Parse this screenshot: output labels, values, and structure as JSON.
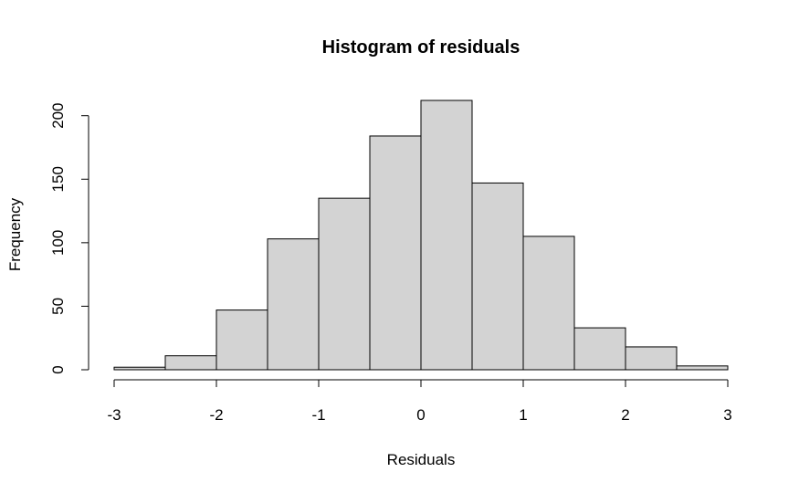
{
  "chart_data": {
    "type": "bar",
    "title": "Histogram of residuals",
    "xlabel": "Residuals",
    "ylabel": "Frequency",
    "bin_edges": [
      -3,
      -2.5,
      -2,
      -1.5,
      -1,
      -0.5,
      0,
      0.5,
      1,
      1.5,
      2,
      2.5,
      3
    ],
    "values": [
      2,
      11,
      47,
      103,
      135,
      184,
      212,
      147,
      105,
      33,
      18,
      3
    ],
    "xlim": [
      -3,
      3
    ],
    "ylim": [
      0,
      212
    ],
    "x_ticks": [
      -3,
      -2,
      -1,
      0,
      1,
      2,
      3
    ],
    "y_ticks": [
      0,
      50,
      100,
      150,
      200
    ],
    "bar_color": "#d3d3d3",
    "grid": false,
    "legend": "none"
  }
}
